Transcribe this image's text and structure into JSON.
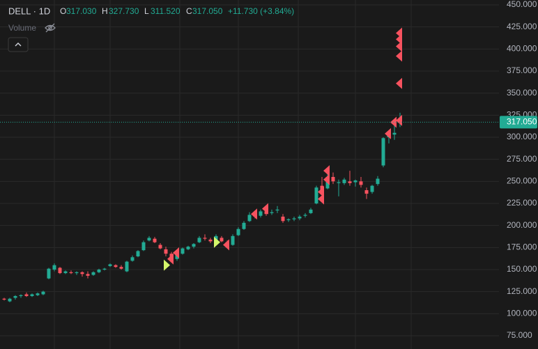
{
  "chart_data": {
    "type": "candlestick",
    "header": {
      "symbol": "DELL · 1D",
      "open_label": "O",
      "open": "317.030",
      "high_label": "H",
      "high": "327.730",
      "low_label": "L",
      "low": "311.520",
      "close_label": "C",
      "close": "317.050",
      "change": "+11.730 (+3.84%)",
      "volume_label": "Volume"
    },
    "up_color": "#22ab94",
    "down_color": "#f7525f",
    "grid": true,
    "ylim": [
      70,
      455
    ],
    "yticks": [
      {
        "value": 75,
        "label": "75.000"
      },
      {
        "value": 100,
        "label": "100.000"
      },
      {
        "value": 125,
        "label": "125.000"
      },
      {
        "value": 150,
        "label": "150.000"
      },
      {
        "value": 175,
        "label": "175.000"
      },
      {
        "value": 200,
        "label": "200.000"
      },
      {
        "value": 225,
        "label": "225.000"
      },
      {
        "value": 250,
        "label": "250.000"
      },
      {
        "value": 275,
        "label": "275.000"
      },
      {
        "value": 300,
        "label": "300.000"
      },
      {
        "value": 325,
        "label": "325.000"
      },
      {
        "value": 350,
        "label": "350.000"
      },
      {
        "value": 375,
        "label": "375.000"
      },
      {
        "value": 400,
        "label": "400.000"
      },
      {
        "value": 425,
        "label": "425.000"
      },
      {
        "value": 450,
        "label": "450.000"
      }
    ],
    "last_price": {
      "value": 317.05,
      "label": "317.050"
    },
    "open": [
      117,
      114,
      118,
      120,
      122,
      120,
      121,
      122,
      140,
      150,
      152,
      146,
      147,
      146,
      147,
      145,
      144,
      147,
      150,
      154,
      155,
      153,
      148,
      160,
      165,
      172,
      183,
      185,
      178,
      173,
      168,
      162,
      168,
      173,
      176,
      181,
      186,
      184,
      183,
      186,
      181,
      178,
      189,
      196,
      205,
      213,
      211,
      216,
      214,
      217,
      210,
      206,
      207,
      208,
      211,
      214,
      225,
      245,
      242,
      255,
      248,
      248,
      250,
      249,
      250,
      240,
      238,
      247,
      268,
      300,
      303,
      317.03
    ],
    "high": [
      118,
      118,
      121,
      122,
      124,
      123,
      124,
      126,
      152,
      157,
      153,
      149,
      149,
      148,
      148,
      148,
      148,
      151,
      152,
      157,
      156,
      155,
      160,
      166,
      172,
      183,
      188,
      187,
      180,
      176,
      170,
      170,
      175,
      177,
      180,
      188,
      190,
      186,
      190,
      188,
      183,
      190,
      198,
      205,
      215,
      217,
      218,
      220,
      218,
      222,
      213,
      208,
      210,
      212,
      214,
      220,
      245,
      255,
      258,
      260,
      252,
      254,
      262,
      252,
      255,
      243,
      246,
      256,
      300,
      306,
      313,
      327.73
    ],
    "low": [
      115,
      113,
      116,
      118,
      119,
      119,
      120,
      121,
      139,
      148,
      145,
      145,
      145,
      144,
      142,
      140,
      143,
      146,
      149,
      153,
      152,
      150,
      147,
      159,
      164,
      171,
      182,
      180,
      173,
      165,
      158,
      160,
      167,
      172,
      174,
      180,
      183,
      180,
      181,
      181,
      175,
      177,
      188,
      195,
      204,
      208,
      209,
      211,
      212,
      214,
      203,
      204,
      205,
      206,
      209,
      213,
      224,
      238,
      241,
      247,
      233,
      246,
      245,
      244,
      243,
      230,
      236,
      245,
      266,
      293,
      297,
      311.52
    ],
    "close": [
      116,
      117,
      120,
      121,
      120,
      122,
      123,
      125,
      151,
      155,
      146,
      148,
      146,
      147,
      145,
      143,
      147,
      150,
      151,
      156,
      153,
      151,
      159,
      164,
      171,
      181,
      186,
      181,
      174,
      168,
      160,
      168,
      174,
      176,
      179,
      186,
      185,
      182,
      188,
      182,
      177,
      188,
      196,
      203,
      212,
      210,
      216,
      213,
      215,
      218,
      205,
      207,
      208,
      210,
      212,
      218,
      243,
      240,
      255,
      250,
      249,
      252,
      248,
      251,
      246,
      236,
      245,
      253,
      299,
      302,
      305,
      317.05
    ],
    "markers": [
      {
        "index": 31,
        "price": 169,
        "color": "#f7525f",
        "direction": "left"
      },
      {
        "index": 30,
        "price": 162,
        "color": "#f7525f",
        "direction": "left"
      },
      {
        "index": 29,
        "price": 155,
        "color": "#d4f56a",
        "direction": "right"
      },
      {
        "index": 38,
        "price": 181,
        "color": "#d4f56a",
        "direction": "right"
      },
      {
        "index": 40,
        "price": 178,
        "color": "#f7525f",
        "direction": "left"
      },
      {
        "index": 45,
        "price": 213,
        "color": "#f7525f",
        "direction": "left"
      },
      {
        "index": 47,
        "price": 219,
        "color": "#f7525f",
        "direction": "left"
      },
      {
        "index": 57,
        "price": 238,
        "color": "#f7525f",
        "direction": "left"
      },
      {
        "index": 57,
        "price": 230,
        "color": "#f7525f",
        "direction": "left"
      },
      {
        "index": 58,
        "price": 262,
        "color": "#f7525f",
        "direction": "left"
      },
      {
        "index": 58,
        "price": 252,
        "color": "#f7525f",
        "direction": "left"
      },
      {
        "index": 69,
        "price": 304,
        "color": "#f7525f",
        "direction": "left"
      },
      {
        "index": 70,
        "price": 317,
        "color": "#f7525f",
        "direction": "left"
      },
      {
        "index": 71,
        "price": 319,
        "color": "#f7525f",
        "direction": "left"
      },
      {
        "index": 71,
        "price": 361,
        "color": "#f7525f",
        "direction": "left"
      },
      {
        "index": 71,
        "price": 392,
        "color": "#f7525f",
        "direction": "left"
      },
      {
        "index": 71,
        "price": 403,
        "color": "#f7525f",
        "direction": "left"
      },
      {
        "index": 71,
        "price": 411,
        "color": "#f7525f",
        "direction": "left"
      },
      {
        "index": 71,
        "price": 418,
        "color": "#f7525f",
        "direction": "left"
      }
    ]
  }
}
